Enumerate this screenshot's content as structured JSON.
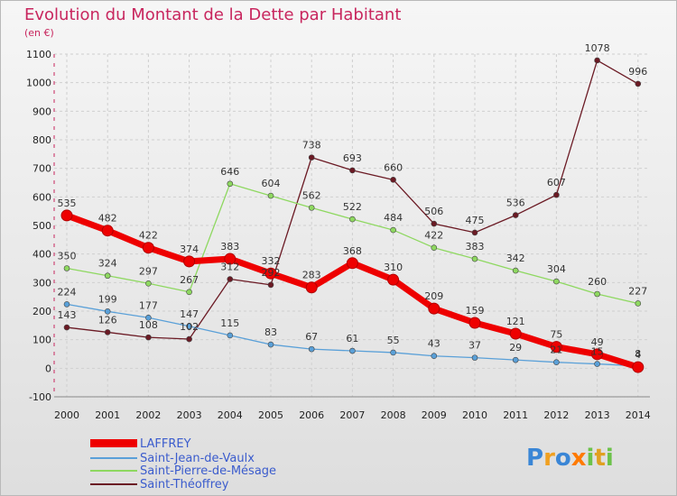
{
  "chart_data": {
    "type": "line",
    "title": "Evolution du Montant de la Dette par Habitant",
    "ylabel": "(en €)",
    "ylim": [
      -100,
      1100
    ],
    "yticks": [
      -100,
      0,
      100,
      200,
      300,
      400,
      500,
      600,
      700,
      800,
      900,
      1000,
      1100
    ],
    "categories": [
      "2000",
      "2001",
      "2002",
      "2003",
      "2004",
      "2005",
      "2006",
      "2007",
      "2008",
      "2009",
      "2010",
      "2011",
      "2012",
      "2013",
      "2014"
    ],
    "series": [
      {
        "name": "Saint-Théoffrey",
        "color": "#6b1a24",
        "values": [
          143,
          126,
          108,
          102,
          312,
          292,
          738,
          693,
          660,
          506,
          475,
          536,
          607,
          1078,
          996
        ],
        "labels": [
          "143",
          "126",
          "108",
          "102",
          "312",
          "292",
          "738",
          "693",
          "660",
          "506",
          "475",
          "536",
          "607",
          "1078",
          "996"
        ]
      },
      {
        "name": "Saint-Pierre-de-Mésage",
        "color": "#8ed860",
        "values": [
          350,
          324,
          297,
          267,
          646,
          604,
          562,
          522,
          484,
          422,
          383,
          342,
          304,
          260,
          227
        ],
        "labels": [
          "350",
          "324",
          "297",
          "267",
          "646",
          "604",
          "562",
          "522",
          "484",
          "422",
          "383",
          "342",
          "304",
          "260",
          "227"
        ]
      },
      {
        "name": "Saint-Jean-de-Vaulx",
        "color": "#5aa0d8",
        "values": [
          224,
          199,
          177,
          147,
          115,
          83,
          67,
          61,
          55,
          43,
          37,
          29,
          21,
          15,
          8
        ],
        "labels": [
          "224",
          "199",
          "177",
          "147",
          "115",
          "83",
          "67",
          "61",
          "55",
          "43",
          "37",
          "29",
          "21",
          "15",
          "8"
        ]
      },
      {
        "name": "LAFFREY",
        "color": "#ee0000",
        "values": [
          535,
          482,
          422,
          374,
          383,
          332,
          283,
          368,
          310,
          209,
          159,
          121,
          75,
          49,
          4
        ],
        "labels": [
          "535",
          "482",
          "422",
          "374",
          "383",
          "332",
          "283",
          "368",
          "310",
          "209",
          "159",
          "121",
          "75",
          "49",
          "4"
        ]
      }
    ],
    "legend": [
      "LAFFREY",
      "Saint-Jean-de-Vaulx",
      "Saint-Pierre-de-Mésage",
      "Saint-Théoffrey"
    ]
  },
  "logo": {
    "text": "Proxiti"
  }
}
